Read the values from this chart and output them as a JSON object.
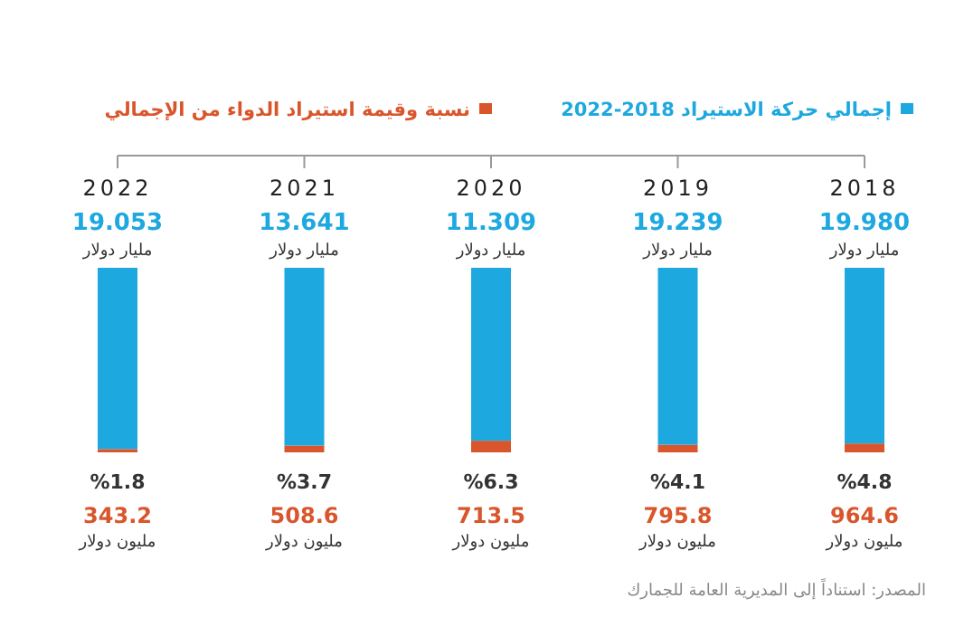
{
  "chart_data": {
    "type": "bar",
    "stacked": true,
    "legend": "top",
    "categories": [
      "2022",
      "2021",
      "2020",
      "2019",
      "2018"
    ],
    "series": [
      {
        "name": "نسبة وقيمة استيراد الدواء من الإجمالي",
        "color": "#d9552b",
        "values": [
          1.8,
          3.7,
          6.3,
          4.1,
          4.8
        ],
        "value_labels": [
          "%1.8",
          "%3.7",
          "%6.3",
          "%4.1",
          "%4.8"
        ]
      },
      {
        "name": "إجمالي حركة الاستيراد 2018-2022",
        "color": "#1ea8e0",
        "values": [
          98.2,
          96.3,
          93.7,
          95.9,
          95.2
        ]
      }
    ],
    "annotations": [
      "19.053\nمليار دولار",
      "13.641\nمليار دولار",
      "11.309\nمليار دولار",
      "19.239\nمليار دولار",
      "19.980\nمليار دولار",
      "343.2\nمليون دولار",
      "508.6\nمليون دولار",
      "713.5\nمليون دولار",
      "795.8\nمليون دولار",
      "964.6\nمليون دولار",
      "المصدر: استناداً إلى المديرية العامة للجمارك"
    ]
  }
}
